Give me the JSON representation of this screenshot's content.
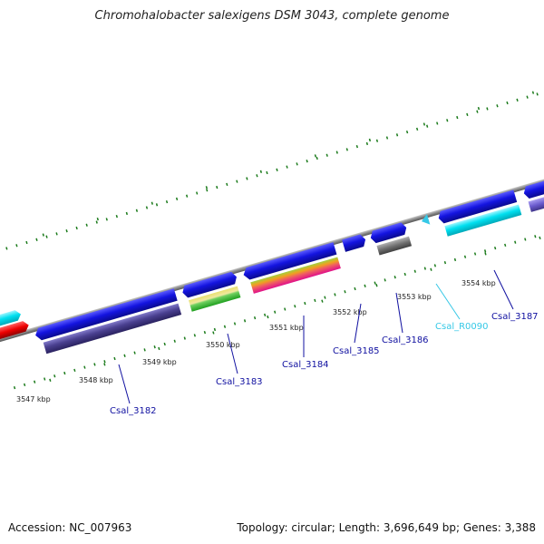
{
  "title": "Chromohalobacter salexigens DSM 3043, complete genome",
  "footer": {
    "accession": "Accession: NC_007963",
    "summary": "Topology: circular; Length: 3,696,649 bp; Genes: 3,388"
  },
  "kbp_labels": [
    "3547 kbp",
    "3548 kbp",
    "3549 kbp",
    "3550 kbp",
    "3551 kbp",
    "3552 kbp",
    "3553 kbp",
    "3554 kbp"
  ],
  "gene_labels": [
    "Csal_3182",
    "Csal_3183",
    "Csal_3184",
    "Csal_3185",
    "Csal_3186",
    "Csal_R0090",
    "Csal_3187"
  ],
  "colors": {
    "cds": "#1414e0",
    "cog_purple": "#4a4090",
    "trna": "#35c8e6",
    "tick": "#1a7a1a",
    "backbone": "#888888"
  }
}
